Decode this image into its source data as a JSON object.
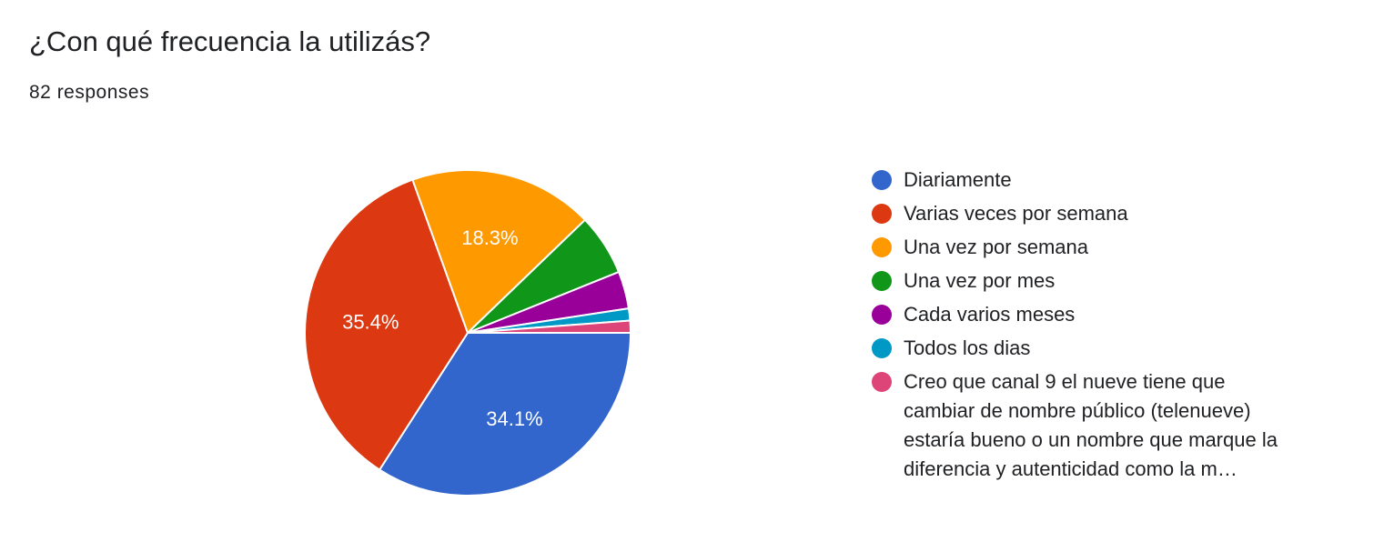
{
  "header": {
    "title": "¿Con qué frecuencia la utilizás?",
    "responses": "82 responses"
  },
  "chart_data": {
    "type": "pie",
    "title": "¿Con qué frecuencia la utilizás?",
    "slices": [
      {
        "label": "Diariamente",
        "percent": 34.1,
        "color": "#3366cc",
        "value_label": "34.1%"
      },
      {
        "label": "Varias veces por semana",
        "percent": 35.4,
        "color": "#dc3912",
        "value_label": "35.4%"
      },
      {
        "label": "Una vez por semana",
        "percent": 18.3,
        "color": "#ff9900",
        "value_label": "18.3%"
      },
      {
        "label": "Una vez por mes",
        "percent": 6.1,
        "color": "#109618",
        "value_label": ""
      },
      {
        "label": "Cada varios meses",
        "percent": 3.7,
        "color": "#990099",
        "value_label": ""
      },
      {
        "label": "Todos los dias",
        "percent": 1.2,
        "color": "#0099c6",
        "value_label": ""
      },
      {
        "label": "Creo que canal 9 el nueve tiene que cambiar de nombre público (telenueve) estaría bueno o un nombre que marque la diferencia y autenticidad como la m…",
        "percent": 1.2,
        "color": "#dd4477",
        "value_label": ""
      }
    ],
    "legend_position": "right"
  }
}
